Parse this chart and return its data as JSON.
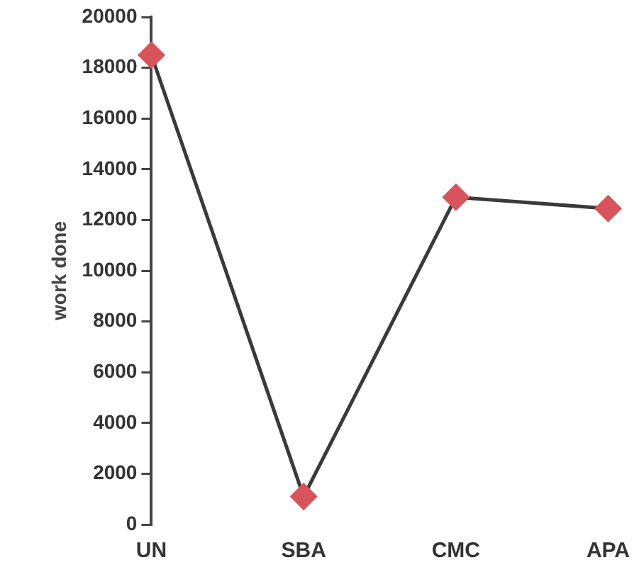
{
  "chart_data": {
    "type": "line",
    "ylabel": "work done",
    "categories": [
      "UN",
      "SBA",
      "CMC",
      "APA"
    ],
    "series": [
      {
        "color": "#3a3a3a",
        "colors": [
          "#d9545a",
          "#d9545a",
          "#d9545a",
          "#d9545a"
        ],
        "values": [
          18500,
          1100,
          12900,
          12450
        ]
      }
    ],
    "ylim": [
      0,
      20000
    ],
    "yticks": [
      0,
      2000,
      4000,
      6000,
      8000,
      10000,
      12000,
      14000,
      16000,
      18000,
      20000
    ],
    "marker": "diamond",
    "grid": false,
    "legend": false
  }
}
